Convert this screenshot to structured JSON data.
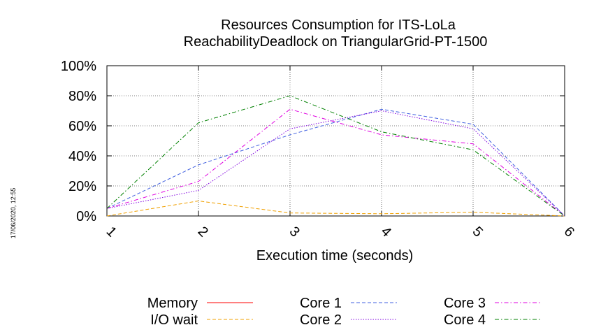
{
  "chart_data": {
    "type": "line",
    "title": "Resources Consumption for ITS-LoLa",
    "subtitle": "ReachabilityDeadlock on TriangularGrid-PT-1500",
    "xlabel": "Execution time (seconds)",
    "ylabel": "",
    "x": [
      1,
      2,
      3,
      4,
      5,
      6
    ],
    "x_ticks": [
      "1",
      "2",
      "3",
      "4",
      "5",
      "6"
    ],
    "y_ticks": [
      "0%",
      "20%",
      "40%",
      "60%",
      "80%",
      "100%"
    ],
    "xlim": [
      1,
      6
    ],
    "ylim": [
      0,
      100
    ],
    "grid": true,
    "legend_position": "bottom",
    "timestamp": "17/06/2020, 12:55",
    "series": [
      {
        "name": "Memory",
        "color": "#ff0000",
        "dash": "solid",
        "values": [
          null,
          null,
          null,
          null,
          null,
          null
        ]
      },
      {
        "name": "I/O wait",
        "color": "#f0a000",
        "dash": "dashed",
        "values": [
          0,
          10,
          2,
          1.5,
          2.5,
          0
        ]
      },
      {
        "name": "Core 1",
        "color": "#4060e0",
        "dash": "dashed",
        "values": [
          5,
          34,
          54,
          71,
          61,
          0
        ]
      },
      {
        "name": "Core 2",
        "color": "#8000e0",
        "dash": "dotted",
        "values": [
          5,
          17,
          58,
          70,
          58,
          0
        ]
      },
      {
        "name": "Core 3",
        "color": "#e000e0",
        "dash": "dashdot",
        "values": [
          5,
          23,
          71,
          54,
          48,
          0
        ]
      },
      {
        "name": "Core 4",
        "color": "#008000",
        "dash": "dashdot",
        "values": [
          5,
          62,
          80,
          56,
          44,
          0
        ]
      }
    ]
  }
}
